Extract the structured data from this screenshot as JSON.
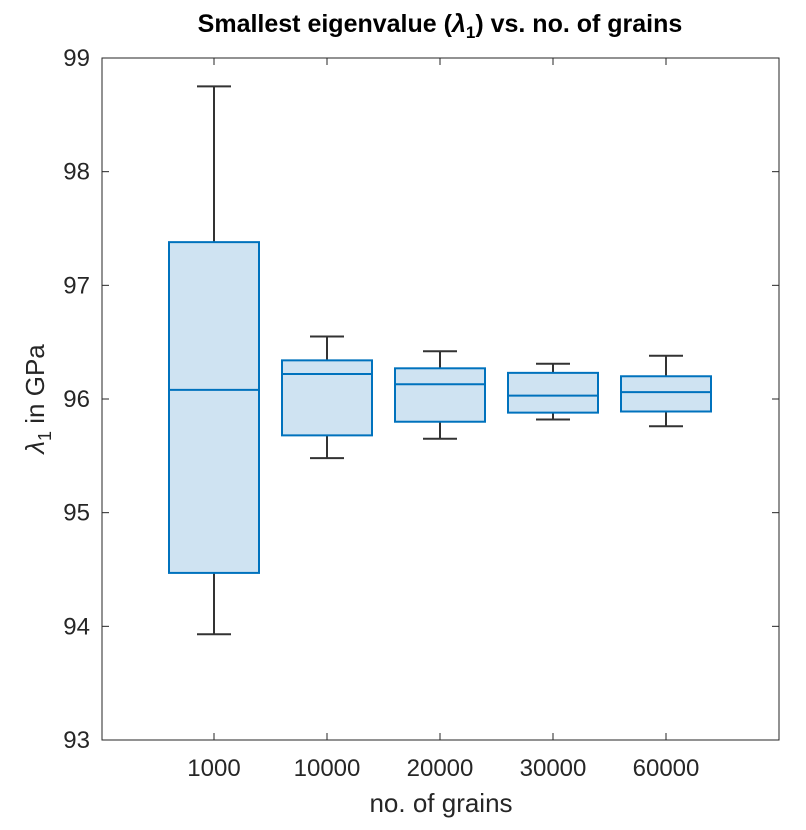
{
  "chart_data": {
    "type": "box",
    "title_parts": [
      "Smallest eigenvalue (",
      "λ",
      "1",
      ") vs. no. of grains"
    ],
    "xlabel": "no. of grains",
    "ylabel_parts": [
      "λ",
      "1",
      " in GPa"
    ],
    "categories": [
      "1000",
      "10000",
      "20000",
      "30000",
      "60000"
    ],
    "ylim": [
      93,
      99
    ],
    "yticks": [
      "93",
      "94",
      "95",
      "96",
      "97",
      "98",
      "99"
    ],
    "boxes": [
      {
        "category": "1000",
        "whisker_low": 93.93,
        "q1": 94.47,
        "median": 96.08,
        "q3": 97.38,
        "whisker_high": 98.75
      },
      {
        "category": "10000",
        "whisker_low": 95.48,
        "q1": 95.68,
        "median": 96.22,
        "q3": 96.34,
        "whisker_high": 96.55
      },
      {
        "category": "20000",
        "whisker_low": 95.65,
        "q1": 95.8,
        "median": 96.13,
        "q3": 96.27,
        "whisker_high": 96.42
      },
      {
        "category": "30000",
        "whisker_low": 95.82,
        "q1": 95.88,
        "median": 96.03,
        "q3": 96.23,
        "whisker_high": 96.31
      },
      {
        "category": "60000",
        "whisker_low": 95.76,
        "q1": 95.89,
        "median": 96.06,
        "q3": 96.2,
        "whisker_high": 96.38
      }
    ],
    "grid": false,
    "colors": {
      "box_edge": "#0072BD",
      "box_fill": "#cfe3f2",
      "whisker": "#333333",
      "axis": "#262626"
    }
  }
}
